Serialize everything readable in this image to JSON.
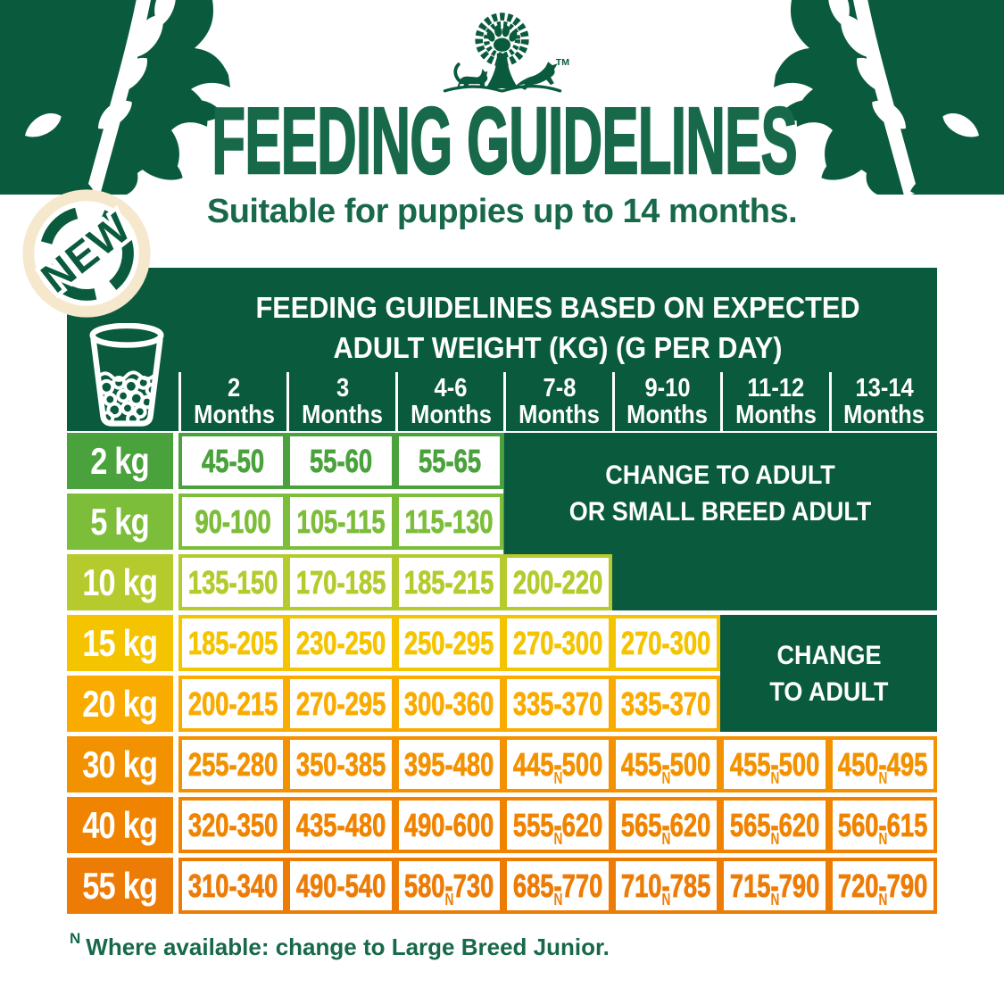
{
  "title": "FEEDING GUIDELINES",
  "subtitle": "Suitable for puppies up to 14 months.",
  "badge": {
    "label": "NEW"
  },
  "logo": {
    "trademark": "TM"
  },
  "icons": {
    "logo": "tree-with-pawprint-cat-and-dog-icon",
    "corners": "leaf-branch-decoration-icon",
    "cup": "measuring-cup-with-kibble-icon"
  },
  "colors": {
    "brand_green": "#0a5b3e",
    "text_green": "#17694a",
    "badge_ring_cream": "#f6e8cc",
    "row_colors": [
      "#4aa23c",
      "#7cbd3a",
      "#b5ca2d",
      "#f4c400",
      "#f9ab00",
      "#f39200",
      "#f08400",
      "#ed7c07"
    ]
  },
  "chart_data": {
    "type": "table",
    "title": "FEEDING GUIDELINES BASED ON EXPECTED ADULT WEIGHT (KG) (G PER DAY)",
    "title_line1": "FEEDING GUIDELINES BASED ON EXPECTED",
    "title_line2": "ADULT WEIGHT (KG) (G PER DAY)",
    "columns": [
      "2 Months",
      "3 Months",
      "4-6 Months",
      "7-8 Months",
      "9-10 Months",
      "11-12 Months",
      "13-14 Months"
    ],
    "rows": [
      {
        "label": "2 kg",
        "color": "#4aa23c",
        "values": [
          {
            "range": "45-50"
          },
          {
            "range": "55-60"
          },
          {
            "range": "55-65"
          }
        ]
      },
      {
        "label": "5 kg",
        "color": "#7cbd3a",
        "values": [
          {
            "range": "90-100"
          },
          {
            "range": "105-115"
          },
          {
            "range": "115-130"
          }
        ]
      },
      {
        "label": "10 kg",
        "color": "#b5ca2d",
        "values": [
          {
            "range": "135-150"
          },
          {
            "range": "170-185"
          },
          {
            "range": "185-215"
          },
          {
            "range": "200-220"
          }
        ]
      },
      {
        "label": "15 kg",
        "color": "#f4c400",
        "values": [
          {
            "range": "185-205"
          },
          {
            "range": "230-250"
          },
          {
            "range": "250-295"
          },
          {
            "range": "270-300"
          },
          {
            "range": "270-300"
          }
        ]
      },
      {
        "label": "20 kg",
        "color": "#f9ab00",
        "values": [
          {
            "range": "200-215"
          },
          {
            "range": "270-295"
          },
          {
            "range": "300-360"
          },
          {
            "range": "335-370"
          },
          {
            "range": "335-370"
          }
        ]
      },
      {
        "label": "30 kg",
        "color": "#f39200",
        "values": [
          {
            "range": "255-280"
          },
          {
            "range": "350-385"
          },
          {
            "range": "395-480"
          },
          {
            "range": "445-500",
            "note": "N"
          },
          {
            "range": "455-500",
            "note": "N"
          },
          {
            "range": "455-500",
            "note": "N"
          },
          {
            "range": "450-495",
            "note": "N"
          }
        ]
      },
      {
        "label": "40 kg",
        "color": "#f08400",
        "values": [
          {
            "range": "320-350"
          },
          {
            "range": "435-480"
          },
          {
            "range": "490-600"
          },
          {
            "range": "555-620",
            "note": "N"
          },
          {
            "range": "565-620",
            "note": "N"
          },
          {
            "range": "565-620",
            "note": "N"
          },
          {
            "range": "560-615",
            "note": "N"
          }
        ]
      },
      {
        "label": "55 kg",
        "color": "#ed7c07",
        "values": [
          {
            "range": "310-340"
          },
          {
            "range": "490-540"
          },
          {
            "range": "580-730",
            "note": "N"
          },
          {
            "range": "685-770",
            "note": "N"
          },
          {
            "range": "710-785",
            "note": "N"
          },
          {
            "range": "715-790",
            "note": "N"
          },
          {
            "range": "720-790",
            "note": "N"
          }
        ]
      }
    ],
    "merged_blocks": {
      "adult_small_breed": {
        "line1": "CHANGE TO ADULT",
        "line2": "OR SMALL BREED ADULT",
        "covers": "7-8 to 13-14 Months for 2 kg and 5 kg; 9-10 to 13-14 Months for 10 kg"
      },
      "adult": {
        "line1": "CHANGE",
        "line2": "TO ADULT",
        "covers": "11-12 and 13-14 Months for 15 kg and 20 kg"
      }
    }
  },
  "footnote": {
    "marker": "N",
    "text": "Where available: change to Large Breed Junior."
  }
}
